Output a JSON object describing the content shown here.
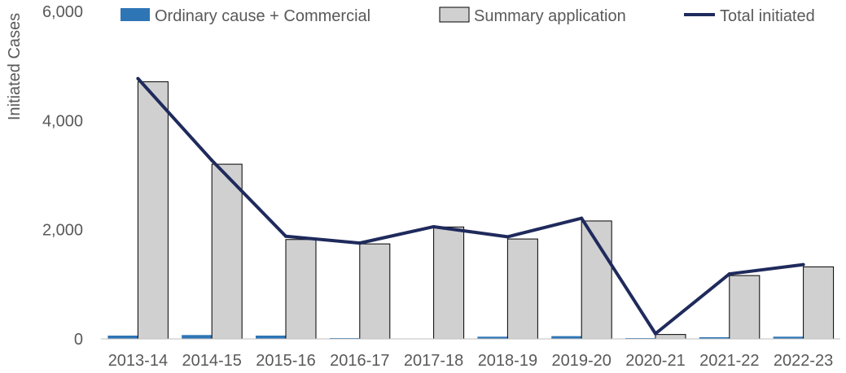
{
  "chart_data": {
    "type": "bar",
    "ylabel": "Initiated Cases",
    "ylim": [
      0,
      6000
    ],
    "yticks": [
      0,
      2000,
      4000,
      6000
    ],
    "ytick_labels": [
      "0",
      "2,000",
      "4,000",
      "6,000"
    ],
    "grid": false,
    "legend_position": "top",
    "categories": [
      "2013-14",
      "2014-15",
      "2015-16",
      "2016-17",
      "2017-18",
      "2018-19",
      "2019-20",
      "2020-21",
      "2021-22",
      "2022-23"
    ],
    "series": [
      {
        "name": "Ordinary cause + Commercial",
        "type": "bar",
        "color": "#2E75B6",
        "values": [
          60,
          70,
          60,
          15,
          5,
          40,
          50,
          15,
          30,
          40
        ]
      },
      {
        "name": "Summary application",
        "type": "bar",
        "color": "#D0D0D0",
        "values": [
          4710,
          3200,
          1820,
          1740,
          2050,
          1830,
          2160,
          80,
          1160,
          1320
        ]
      },
      {
        "name": "Total initiated",
        "type": "line",
        "color": "#1F2A5C",
        "values": [
          4770,
          3270,
          1880,
          1755,
          2055,
          1870,
          2210,
          95,
          1190,
          1360
        ]
      }
    ]
  }
}
